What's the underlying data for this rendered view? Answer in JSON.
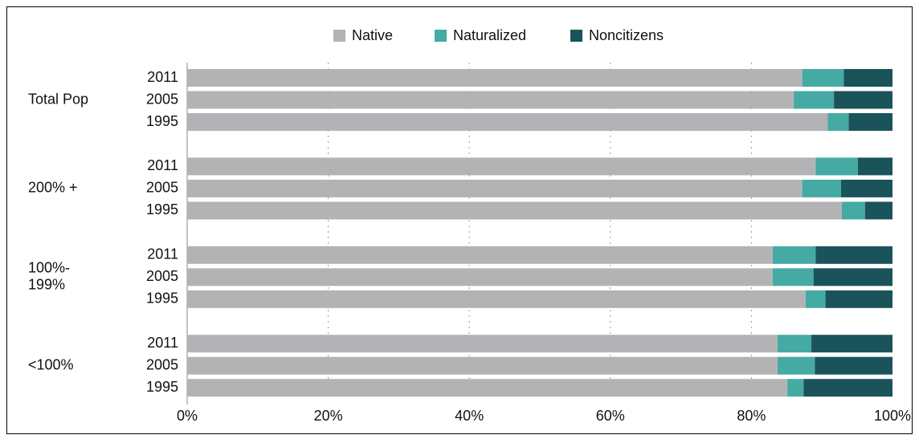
{
  "chart_data": {
    "type": "stacked-bar-horizontal",
    "groups": [
      [
        "Total Pop"
      ],
      [
        "200% +"
      ],
      [
        "100%-",
        "199%"
      ],
      [
        "<100%"
      ]
    ],
    "categories": [
      "2011",
      "2005",
      "1995",
      "2011",
      "2005",
      "1995",
      "2011",
      "2005",
      "1995",
      "2011",
      "2005",
      "1995"
    ],
    "series": [
      {
        "name": "Native",
        "color": "#b3b3b6",
        "values": [
          87.2,
          86.0,
          90.8,
          89.1,
          87.2,
          92.8,
          83.0,
          83.0,
          87.7,
          83.7,
          83.7,
          85.1
        ]
      },
      {
        "name": "Naturalized",
        "color": "#45aaa3",
        "values": [
          5.9,
          5.7,
          3.0,
          6.0,
          5.5,
          3.3,
          6.1,
          5.8,
          2.8,
          4.8,
          5.3,
          2.3
        ]
      },
      {
        "name": "Noncitizens",
        "color": "#1b535a",
        "values": [
          6.9,
          8.3,
          6.2,
          4.9,
          7.3,
          3.9,
          10.9,
          11.2,
          9.5,
          11.5,
          11.0,
          12.6
        ]
      }
    ],
    "xlim": [
      0,
      100
    ],
    "xticks": [
      {
        "value": 0,
        "label": "0%"
      },
      {
        "value": 20,
        "label": "20%"
      },
      {
        "value": 40,
        "label": "40%"
      },
      {
        "value": 60,
        "label": "60%"
      },
      {
        "value": 80,
        "label": "80%"
      },
      {
        "value": 100,
        "label": "100%"
      }
    ],
    "grid": true,
    "legend": "top"
  }
}
